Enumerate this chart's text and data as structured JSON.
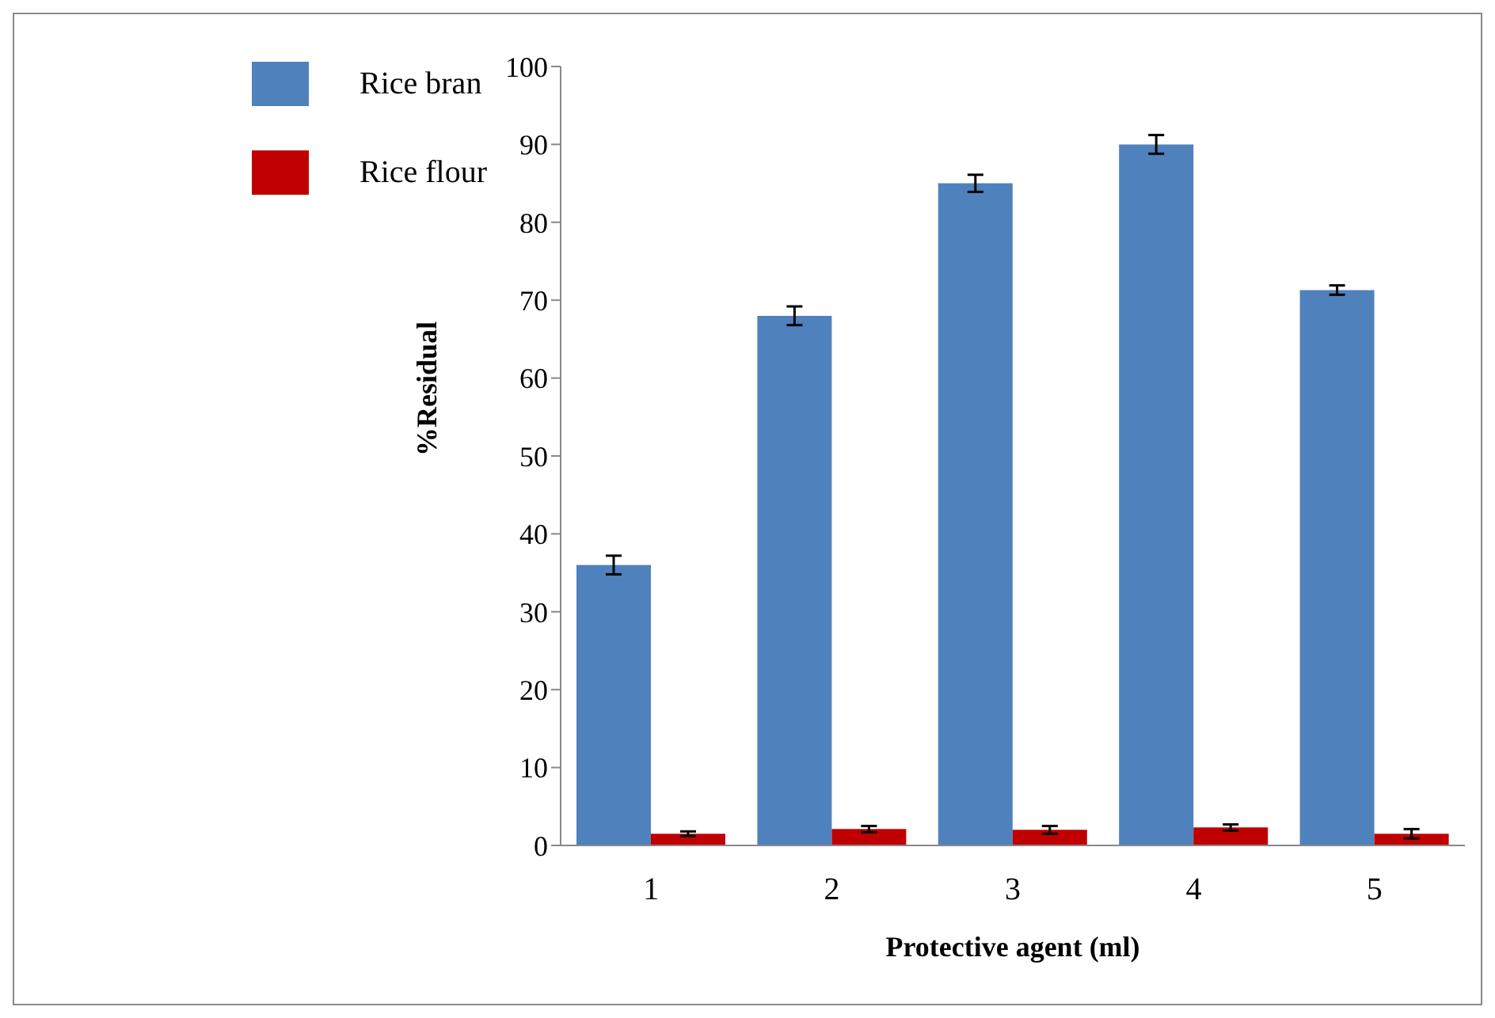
{
  "chart_data": {
    "type": "bar",
    "xlabel": "Protective agent (ml)",
    "ylabel": "%Residual",
    "categories": [
      "1",
      "2",
      "3",
      "4",
      "5"
    ],
    "series": [
      {
        "name": "Rice bran",
        "color": "#4f81bd",
        "values": [
          36,
          68,
          85,
          90,
          71.3
        ],
        "errors": [
          1.2,
          1.2,
          1.1,
          1.2,
          0.6
        ]
      },
      {
        "name": "Rice flour",
        "color": "#c00000",
        "values": [
          1.5,
          2.1,
          2,
          2.3,
          1.5
        ],
        "errors": [
          0.3,
          0.4,
          0.5,
          0.4,
          0.6
        ]
      }
    ],
    "ylim": [
      0,
      100
    ],
    "yticks": [
      0,
      10,
      20,
      30,
      40,
      50,
      60,
      70,
      80,
      90,
      100
    ],
    "grid": false,
    "legend": "top left"
  }
}
